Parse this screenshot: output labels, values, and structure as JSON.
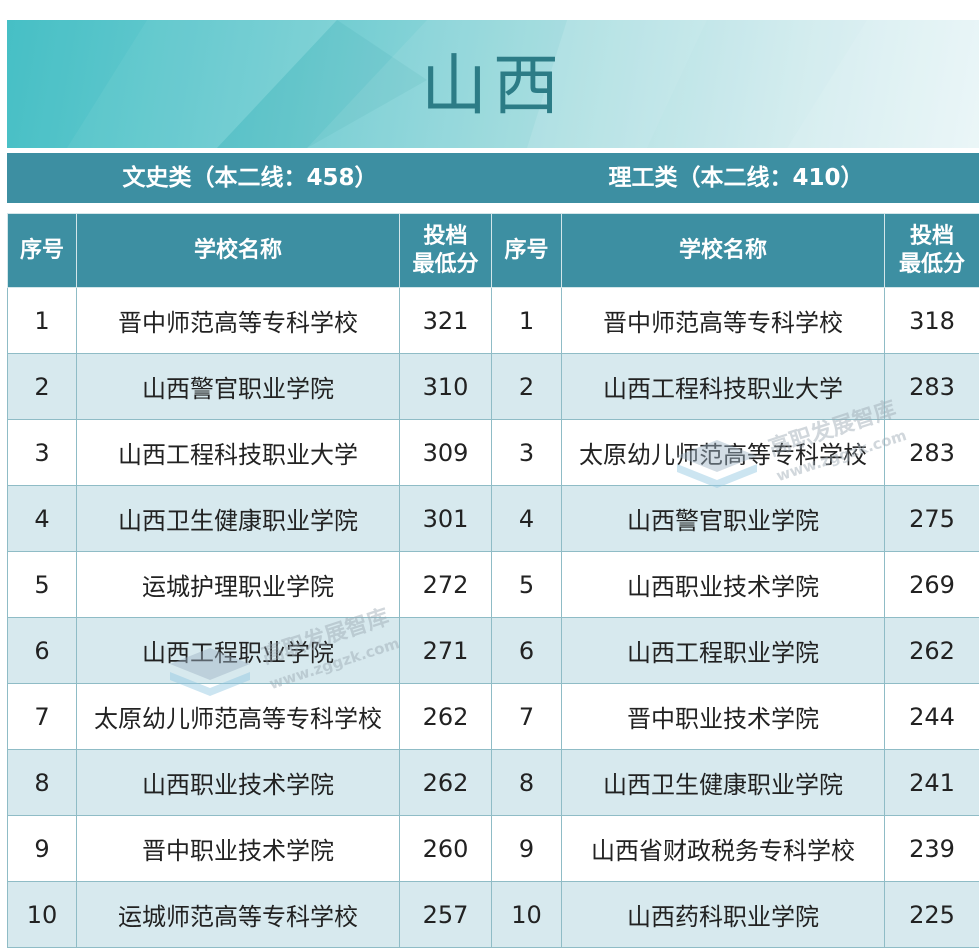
{
  "title": "山西",
  "categories": {
    "left": "文史类（本二线：458）",
    "right": "理工类（本二线：410）"
  },
  "headers": {
    "index": "序号",
    "school": "学校名称",
    "score_line1": "投档",
    "score_line2": "最低分"
  },
  "left_rows": [
    {
      "no": "1",
      "school": "晋中师范高等专科学校",
      "score": "321"
    },
    {
      "no": "2",
      "school": "山西警官职业学院",
      "score": "310"
    },
    {
      "no": "3",
      "school": "山西工程科技职业大学",
      "score": "309"
    },
    {
      "no": "4",
      "school": "山西卫生健康职业学院",
      "score": "301"
    },
    {
      "no": "5",
      "school": "运城护理职业学院",
      "score": "272"
    },
    {
      "no": "6",
      "school": "山西工程职业学院",
      "score": "271"
    },
    {
      "no": "7",
      "school": "太原幼儿师范高等专科学校",
      "score": "262"
    },
    {
      "no": "8",
      "school": "山西职业技术学院",
      "score": "262"
    },
    {
      "no": "9",
      "school": "晋中职业技术学院",
      "score": "260"
    },
    {
      "no": "10",
      "school": "运城师范高等专科学校",
      "score": "257"
    }
  ],
  "right_rows": [
    {
      "no": "1",
      "school": "晋中师范高等专科学校",
      "score": "318"
    },
    {
      "no": "2",
      "school": "山西工程科技职业大学",
      "score": "283"
    },
    {
      "no": "3",
      "school": "太原幼儿师范高等专科学校",
      "score": "283"
    },
    {
      "no": "4",
      "school": "山西警官职业学院",
      "score": "275"
    },
    {
      "no": "5",
      "school": "山西职业技术学院",
      "score": "269"
    },
    {
      "no": "6",
      "school": "山西工程职业学院",
      "score": "262"
    },
    {
      "no": "7",
      "school": "晋中职业技术学院",
      "score": "244"
    },
    {
      "no": "8",
      "school": "山西卫生健康职业学院",
      "score": "241"
    },
    {
      "no": "9",
      "school": "山西省财政税务专科学校",
      "score": "239"
    },
    {
      "no": "10",
      "school": "山西药科职业学院",
      "score": "225"
    }
  ],
  "watermark": {
    "name": "高职发展智库",
    "url": "www.zggzk.com"
  },
  "colors": {
    "header_bg": "#3d8fa2",
    "alt_row": "#d7e9ee",
    "title_color": "#2c7c86"
  }
}
